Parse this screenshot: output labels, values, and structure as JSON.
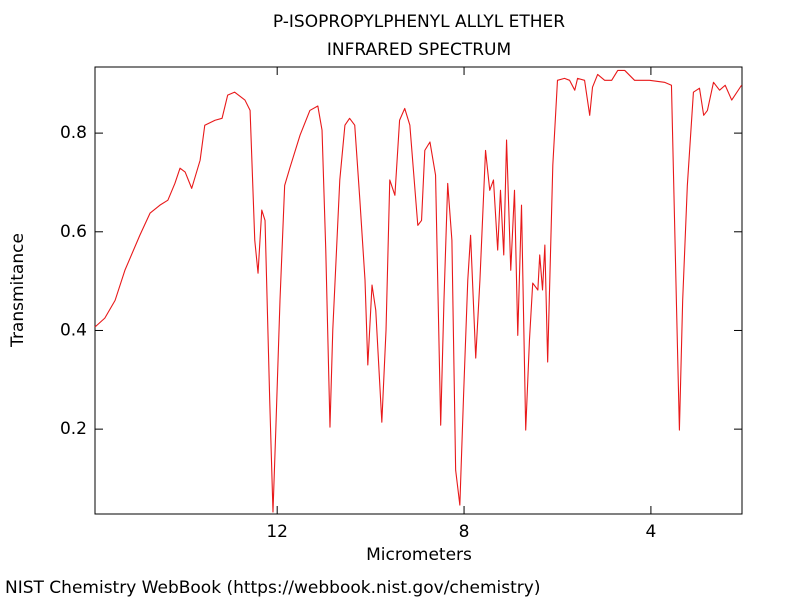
{
  "chart_data": {
    "type": "line",
    "title": "P-ISOPROPYLPHENYL ALLYL ETHER",
    "subtitle": "INFRARED SPECTRUM",
    "x_label": "Micrometers",
    "y_label": "Transmitance",
    "source": "NIST Chemistry WebBook (https://webbook.nist.gov/chemistry)",
    "xlim": [
      15.9,
      2.05
    ],
    "ylim": [
      0.028,
      0.934
    ],
    "xticks": [
      12,
      8,
      4
    ],
    "yticks": [
      0.2,
      0.4,
      0.6,
      0.8
    ],
    "x": [
      15.9,
      15.69,
      15.47,
      15.26,
      14.94,
      14.72,
      14.51,
      14.34,
      14.19,
      14.08,
      13.97,
      13.83,
      13.65,
      13.55,
      13.33,
      13.18,
      13.06,
      12.91,
      12.69,
      12.58,
      12.48,
      12.41,
      12.33,
      12.26,
      12.16,
      12.09,
      12.03,
      11.94,
      11.84,
      11.73,
      11.51,
      11.3,
      11.13,
      11.04,
      10.96,
      10.87,
      10.81,
      10.66,
      10.55,
      10.45,
      10.34,
      10.23,
      10.12,
      10.06,
      9.97,
      9.89,
      9.76,
      9.67,
      9.59,
      9.48,
      9.38,
      9.27,
      9.16,
      8.99,
      8.91,
      8.84,
      8.73,
      8.61,
      8.5,
      8.43,
      8.35,
      8.26,
      8.18,
      8.09,
      8.01,
      7.92,
      7.86,
      7.75,
      7.66,
      7.54,
      7.45,
      7.37,
      7.28,
      7.22,
      7.15,
      7.09,
      7.0,
      6.92,
      6.85,
      6.77,
      6.68,
      6.6,
      6.53,
      6.42,
      6.38,
      6.32,
      6.27,
      6.21,
      6.17,
      6.1,
      6.0,
      5.85,
      5.74,
      5.63,
      5.57,
      5.42,
      5.31,
      5.25,
      5.14,
      4.99,
      4.84,
      4.71,
      4.56,
      4.35,
      4.03,
      3.71,
      3.56,
      3.45,
      3.39,
      3.32,
      3.22,
      3.09,
      2.96,
      2.87,
      2.79,
      2.66,
      2.53,
      2.41,
      2.27,
      2.06
    ],
    "series": [
      {
        "color": "#e8191a",
        "values": [
          0.407,
          0.425,
          0.461,
          0.522,
          0.593,
          0.638,
          0.654,
          0.664,
          0.698,
          0.729,
          0.721,
          0.688,
          0.745,
          0.816,
          0.826,
          0.83,
          0.877,
          0.883,
          0.867,
          0.846,
          0.583,
          0.516,
          0.644,
          0.623,
          0.259,
          0.032,
          0.198,
          0.461,
          0.694,
          0.729,
          0.796,
          0.846,
          0.855,
          0.806,
          0.563,
          0.204,
          0.401,
          0.705,
          0.816,
          0.83,
          0.816,
          0.664,
          0.502,
          0.33,
          0.492,
          0.441,
          0.214,
          0.401,
          0.705,
          0.674,
          0.826,
          0.85,
          0.816,
          0.613,
          0.623,
          0.765,
          0.782,
          0.715,
          0.208,
          0.461,
          0.698,
          0.583,
          0.117,
          0.046,
          0.269,
          0.502,
          0.593,
          0.344,
          0.502,
          0.765,
          0.684,
          0.705,
          0.563,
          0.684,
          0.553,
          0.786,
          0.522,
          0.684,
          0.39,
          0.654,
          0.198,
          0.38,
          0.496,
          0.482,
          0.553,
          0.482,
          0.573,
          0.336,
          0.482,
          0.735,
          0.907,
          0.911,
          0.907,
          0.887,
          0.911,
          0.907,
          0.836,
          0.893,
          0.919,
          0.907,
          0.907,
          0.927,
          0.927,
          0.907,
          0.907,
          0.903,
          0.897,
          0.441,
          0.198,
          0.461,
          0.694,
          0.883,
          0.891,
          0.836,
          0.846,
          0.903,
          0.887,
          0.897,
          0.867,
          0.897
        ]
      }
    ]
  }
}
